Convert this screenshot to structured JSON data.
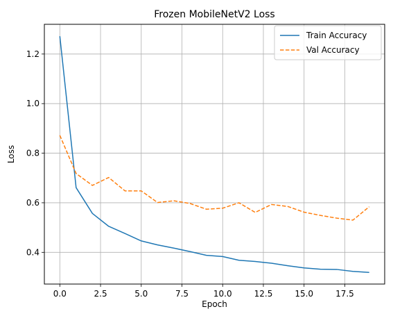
{
  "chart_data": {
    "type": "line",
    "title": "Frozen MobileNetV2 Loss",
    "xlabel": "Epoch",
    "ylabel": "Loss",
    "xlim": [
      -0.95,
      19.95
    ],
    "ylim": [
      0.272,
      1.32
    ],
    "xticks": [
      0.0,
      2.5,
      5.0,
      7.5,
      10.0,
      12.5,
      15.0,
      17.5
    ],
    "xtick_labels": [
      "0.0",
      "2.5",
      "5.0",
      "7.5",
      "10.0",
      "12.5",
      "15.0",
      "17.5"
    ],
    "yticks": [
      0.4,
      0.6,
      0.8,
      1.0,
      1.2
    ],
    "ytick_labels": [
      "0.4",
      "0.6",
      "0.8",
      "1.0",
      "1.2"
    ],
    "grid": true,
    "legend_position": "top-right",
    "x": [
      0,
      1,
      2,
      3,
      4,
      5,
      6,
      7,
      8,
      9,
      10,
      11,
      12,
      13,
      14,
      15,
      16,
      17,
      18,
      19
    ],
    "series": [
      {
        "name": "Train Accuracy",
        "color": "#1f77b4",
        "dash": "solid",
        "values": [
          1.272,
          0.661,
          0.557,
          0.505,
          0.476,
          0.446,
          0.43,
          0.417,
          0.403,
          0.388,
          0.383,
          0.368,
          0.363,
          0.356,
          0.346,
          0.337,
          0.332,
          0.331,
          0.323,
          0.319
        ]
      },
      {
        "name": "Val Accuracy",
        "color": "#ff7f0e",
        "dash": "dashed",
        "values": [
          0.872,
          0.718,
          0.67,
          0.702,
          0.648,
          0.648,
          0.601,
          0.608,
          0.597,
          0.574,
          0.578,
          0.6,
          0.561,
          0.593,
          0.585,
          0.562,
          0.549,
          0.538,
          0.53,
          0.584
        ]
      }
    ]
  }
}
